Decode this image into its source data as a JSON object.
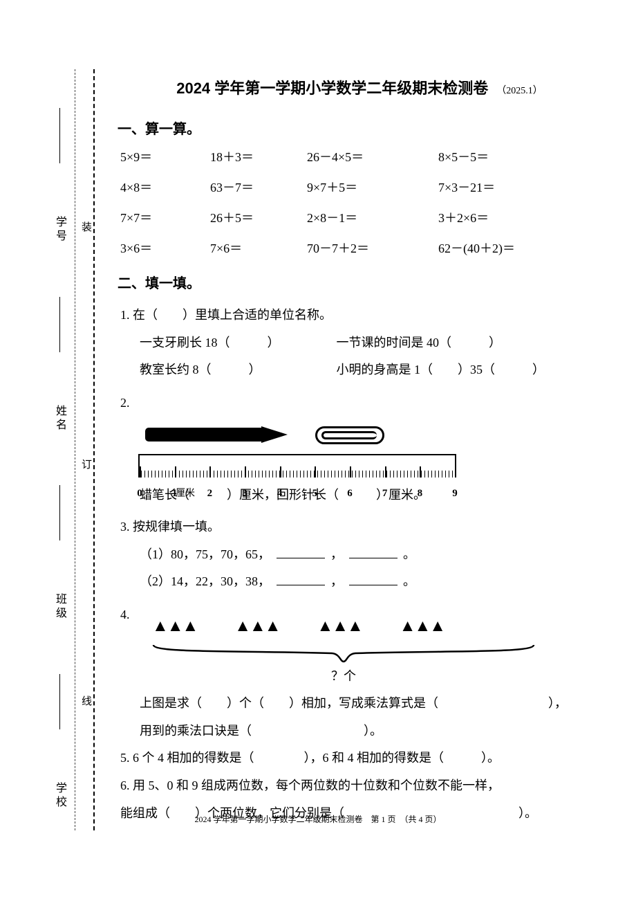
{
  "title": "2024 学年第一学期小学数学二年级期末检测卷",
  "title_date": "（2025.1）",
  "sections": {
    "s1": "一、算一算。",
    "s2": "二、填一填。"
  },
  "calc": [
    [
      "5×9＝",
      "18＋3＝",
      "26－4×5＝",
      "8×5－5＝"
    ],
    [
      "4×8＝",
      "63－7＝",
      "9×7＋5＝",
      "7×3－21＝"
    ],
    [
      "7×7＝",
      "26＋5＝",
      "2×8－1＝",
      "3＋2×6＝"
    ],
    [
      "3×6＝",
      "7×6＝",
      "70－7＋2＝",
      "62－(40＋2)＝"
    ]
  ],
  "q1": {
    "stem": "1. 在（　　）里填上合适的单位名称。",
    "a": "一支牙刷长 18（　　　）",
    "b": "一节课的时间是 40（　　　）",
    "c": "教室长约  8（　　　）",
    "d": "小明的身高是 1（　　）35（　　　）"
  },
  "q2": {
    "num": "2.",
    "line": "蜡笔长（　　　）厘米，回形针长（　　　）厘米。",
    "ruler": {
      "ticks": [
        "0",
        "1",
        "2",
        "3",
        "4",
        "5",
        "6",
        "7",
        "8",
        "9"
      ],
      "unit": "厘米"
    }
  },
  "q3": {
    "stem": "3. 按规律填一填。",
    "a_prefix": "（1）80，75，70，65，",
    "b_prefix": "（2）14，22，30，38，",
    "sep": "，",
    "end": "。"
  },
  "q4": {
    "num": "4.",
    "tri_group": "▲▲▲",
    "brace_label": "？个",
    "line1a": "上图是求（　　）个（　　）相加，写成乘法算式是（",
    "line1b": "），",
    "line2": "用到的乘法口诀是（　　　　　　　　　）。"
  },
  "q5": "5. 6 个 4 相加的得数是（　　　　），6 和 4 相加的得数是（　　　）。",
  "q6": {
    "line1": "6. 用 5、0 和 9 组成两位数，每个两位数的十位数和个位数不能一样，",
    "line2": "能组成（　　）个两位数，它们分别是（　　　　　　　　　　　　　　）。"
  },
  "footer": "2024 学年第一学期小学数学二年级期末检测卷　第 1 页　（共 4 页）",
  "bind": {
    "school": "学校",
    "class": "班级",
    "name": "姓名",
    "id": "学号",
    "staple1": "装",
    "staple2": "订",
    "staple3": "线"
  }
}
